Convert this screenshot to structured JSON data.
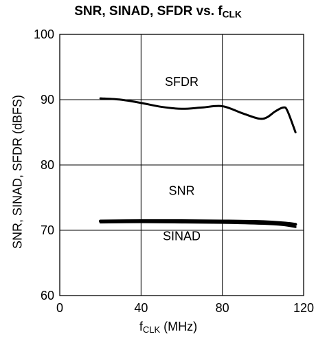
{
  "chart_data": {
    "type": "line",
    "title_main": "SNR, SINAD, SFDR vs. f",
    "title_sub": "CLK",
    "xlabel_main": "f",
    "xlabel_sub": "CLK",
    "xlabel_unit": " (MHz)",
    "ylabel": "SNR, SINAD, SFDR (dBFS)",
    "xlim": [
      0,
      120
    ],
    "ylim": [
      60,
      100
    ],
    "xticks": [
      0,
      40,
      80,
      120
    ],
    "yticks": [
      60,
      70,
      80,
      90,
      100
    ],
    "grid": true,
    "series": [
      {
        "name": "SFDR",
        "stroke": 3,
        "x": [
          20,
          30,
          40,
          50,
          60,
          70,
          80,
          90,
          98,
          102,
          106,
          110,
          112,
          116
        ],
        "y": [
          90.2,
          90.0,
          89.5,
          88.9,
          88.6,
          88.8,
          89.0,
          87.9,
          87.1,
          87.3,
          88.2,
          88.8,
          88.3,
          85.0
        ]
      },
      {
        "name": "SNR",
        "stroke": 4.5,
        "x": [
          20,
          40,
          60,
          80,
          100,
          110,
          116
        ],
        "y": [
          71.4,
          71.45,
          71.45,
          71.4,
          71.3,
          71.1,
          70.9
        ]
      },
      {
        "name": "SINAD",
        "stroke": 3,
        "x": [
          20,
          40,
          60,
          80,
          100,
          110,
          116
        ],
        "y": [
          71.2,
          71.25,
          71.2,
          71.15,
          71.0,
          70.8,
          70.5
        ]
      }
    ],
    "annotations": [
      {
        "text": "SFDR",
        "x": 60,
        "y": 92.1
      },
      {
        "text": "SNR",
        "x": 60,
        "y": 75.4
      },
      {
        "text": "SINAD",
        "x": 60,
        "y": 68.5
      }
    ]
  }
}
